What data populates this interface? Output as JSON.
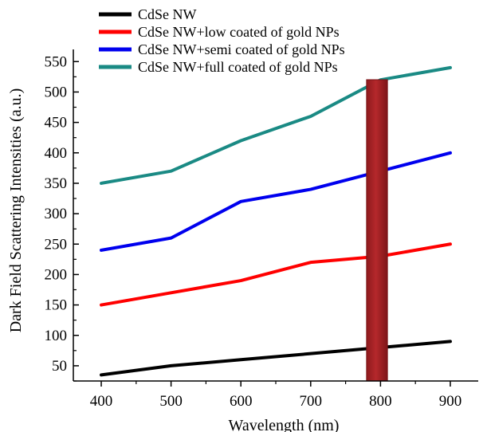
{
  "chart_data": {
    "type": "line",
    "xlabel": "Wavelength (nm)",
    "ylabel": "Dark Field Scattering Intensities (a.u.)",
    "xlim": [
      360,
      940
    ],
    "ylim": [
      25,
      570
    ],
    "xticks": [
      400,
      500,
      600,
      700,
      800,
      900
    ],
    "yticks": [
      50,
      100,
      150,
      200,
      250,
      300,
      350,
      400,
      450,
      500,
      550
    ],
    "legend_position": "top-left",
    "grid": false,
    "x": [
      400,
      500,
      600,
      700,
      800,
      900
    ],
    "series": [
      {
        "name": "CdSe NW",
        "color": "#000000",
        "values": [
          35,
          50,
          60,
          70,
          80,
          90
        ]
      },
      {
        "name": "CdSe NW+low coated of gold NPs",
        "color": "#ff0000",
        "values": [
          150,
          170,
          190,
          220,
          230,
          250
        ]
      },
      {
        "name": "CdSe NW+semi coated of gold NPs",
        "color": "#0000ee",
        "values": [
          240,
          260,
          320,
          340,
          370,
          400
        ]
      },
      {
        "name": "CdSe NW+full coated of gold NPs",
        "color": "#1a8a84",
        "values": [
          350,
          370,
          420,
          460,
          520,
          540
        ]
      }
    ],
    "highlight_band": {
      "x_range": [
        780,
        810
      ],
      "color": "#b5282b"
    }
  }
}
